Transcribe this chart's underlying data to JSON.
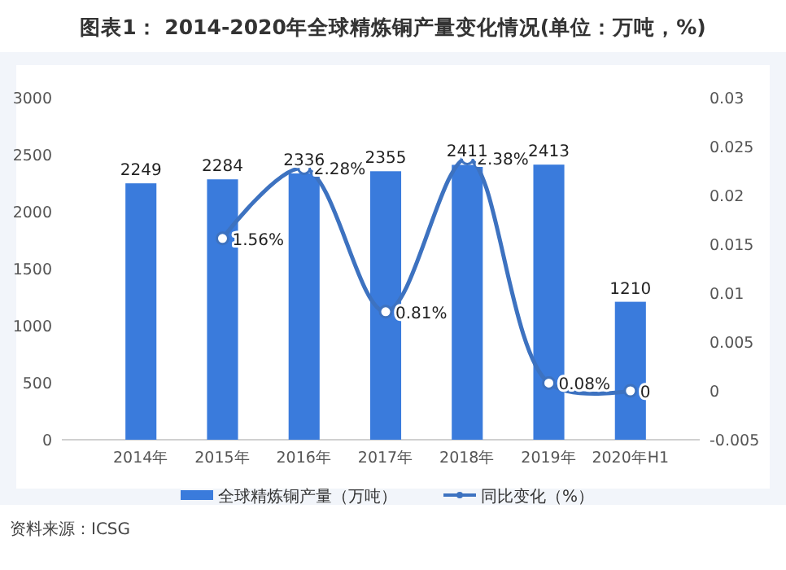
{
  "chart_data": {
    "type": "bar",
    "title": "图表1： 2014-2020年全球精炼铜产量变化情况(单位：万吨，%)",
    "categories": [
      "2014年",
      "2015年",
      "2016年",
      "2017年",
      "2018年",
      "2019年",
      "2020年H1"
    ],
    "series": [
      {
        "name": "全球精炼铜产量（万吨）",
        "color": "#3a7bdc",
        "values": [
          2249,
          2284,
          2336,
          2355,
          2411,
          2413,
          1210
        ],
        "value_labels": [
          "2249",
          "2284",
          "2336",
          "2355",
          "2411",
          "2413",
          "1210"
        ]
      },
      {
        "name": "同比变化（%）",
        "type": "line",
        "axis": "y2",
        "color": "#3d72c0",
        "marker": "circle",
        "values": [
          null,
          0.0156,
          0.0228,
          0.0081,
          0.0238,
          0.0008,
          0
        ],
        "value_labels": [
          null,
          "1.56%",
          "2.28%",
          "0.81%",
          "2.38%",
          "0.08%",
          "0"
        ]
      }
    ],
    "ylim": [
      0,
      3000
    ],
    "yticks": [
      0,
      500,
      1000,
      1500,
      2000,
      2500,
      3000
    ],
    "y2lim": [
      -0.005,
      0.03
    ],
    "y2ticks": [
      -0.005,
      0,
      0.005,
      0.01,
      0.015,
      0.02,
      0.025,
      0.03
    ],
    "legend": "bottom",
    "grid": false,
    "annotations": [
      "资料来源：ICSG"
    ]
  }
}
